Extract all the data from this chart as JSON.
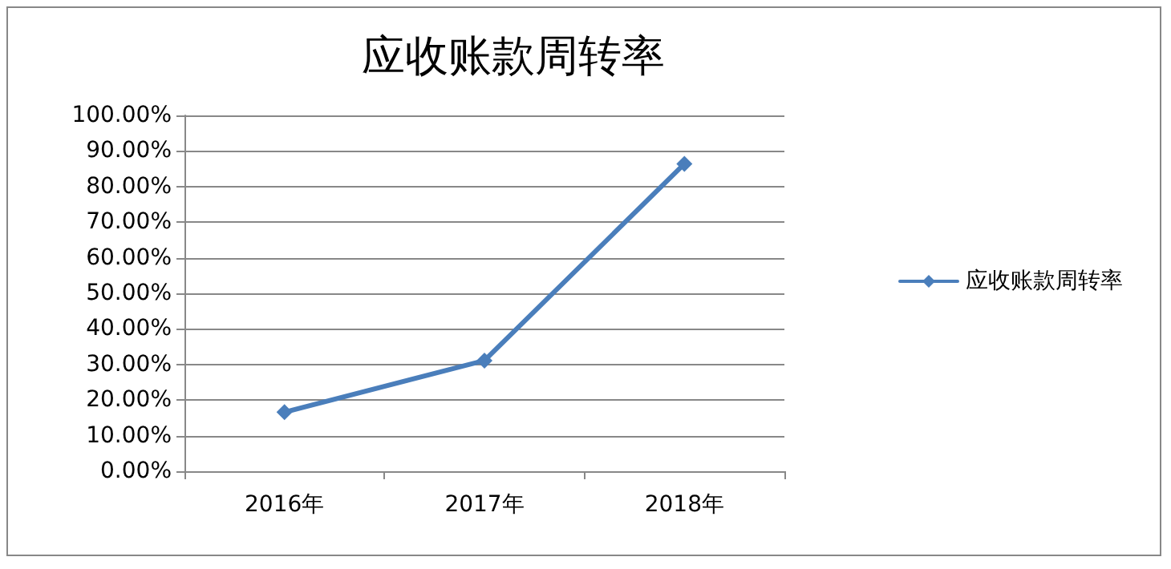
{
  "chart_data": {
    "type": "line",
    "title": "应收账款周转率",
    "categories": [
      "2016年",
      "2017年",
      "2018年"
    ],
    "series": [
      {
        "name": "应收账款周转率",
        "color": "#4a7ebb",
        "values": [
          16.6,
          31.1,
          86.4
        ]
      }
    ],
    "ylim": [
      0,
      100
    ],
    "yticks": [
      {
        "value": 0,
        "label": "0.00%"
      },
      {
        "value": 10,
        "label": "10.00%"
      },
      {
        "value": 20,
        "label": "20.00%"
      },
      {
        "value": 30,
        "label": "30.00%"
      },
      {
        "value": 40,
        "label": "40.00%"
      },
      {
        "value": 50,
        "label": "50.00%"
      },
      {
        "value": 60,
        "label": "60.00%"
      },
      {
        "value": 70,
        "label": "70.00%"
      },
      {
        "value": 80,
        "label": "80.00%"
      },
      {
        "value": 90,
        "label": "90.00%"
      },
      {
        "value": 100,
        "label": "100.00%"
      }
    ],
    "grid": "y",
    "legend": "right",
    "marker": "diamond",
    "line_style": "solid"
  }
}
